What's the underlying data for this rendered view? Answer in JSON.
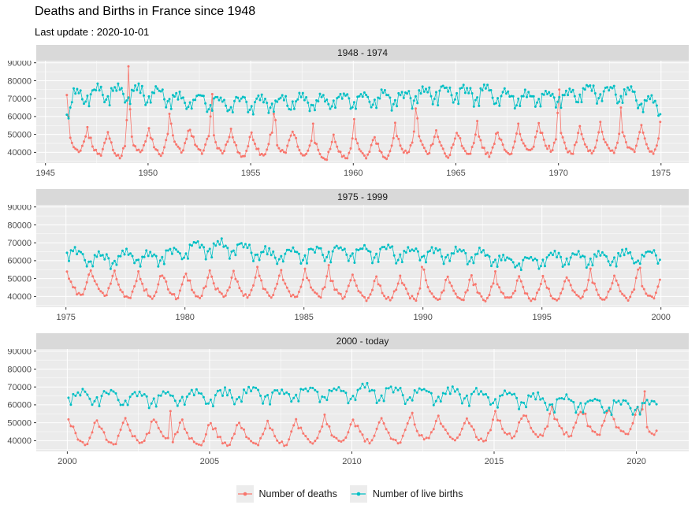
{
  "header": {
    "title": "Deaths and Births in France since 1948",
    "subtitle": "Last update : 2020-10-01"
  },
  "theme": {
    "background": "#FFFFFF",
    "panel_bg": "#EBEBEB",
    "strip_bg": "#D9D9D9",
    "strip_text": "#1A1A1A",
    "grid": "#FFFFFF",
    "axis_text": "#4D4D4D",
    "tick": "#333333",
    "legend_key_bg": "#ECECEC",
    "deaths_color": "#F8766D",
    "births_color": "#00BFC4"
  },
  "chart_data": {
    "type": "line",
    "title": "Deaths and Births in France since 1948",
    "subtitle": "Last update : 2020-10-01",
    "xlabel": "",
    "ylabel": "",
    "grid": "on",
    "legend_position": "bottom",
    "y_ticks": [
      40000,
      50000,
      60000,
      70000,
      80000,
      90000
    ],
    "y_minor": [
      35000,
      45000,
      55000,
      65000,
      75000,
      85000
    ],
    "y_domain": [
      34000,
      91200
    ],
    "panels": [
      {
        "strip": "1948 - 1974",
        "start": [
          1946,
          1
        ],
        "end": [
          1974,
          12
        ],
        "x_ticks": [
          1945,
          1950,
          1955,
          1960,
          1965,
          1970,
          1975
        ],
        "x_domain": [
          1944.55,
          1976.35
        ]
      },
      {
        "strip": "1975 - 1999",
        "start": [
          1975,
          1
        ],
        "end": [
          1999,
          12
        ],
        "x_ticks": [
          1975,
          1980,
          1985,
          1990,
          1995,
          2000
        ],
        "x_domain": [
          1973.75,
          2001.17
        ]
      },
      {
        "strip": "2000 - today",
        "start": [
          2000,
          1
        ],
        "end": [
          2020,
          9
        ],
        "x_ticks": [
          2000,
          2005,
          2010,
          2015,
          2020
        ],
        "x_domain": [
          1998.91,
          2021.84
        ]
      }
    ],
    "series": [
      {
        "name": "Number of deaths",
        "color": "#F8766D",
        "unit": "deaths per month",
        "noise": 0.028,
        "noise_seed": 1,
        "seasonal": [
          1.17,
          1.09,
          1.05,
          0.98,
          0.94,
          0.9,
          0.89,
          0.87,
          0.88,
          0.95,
          1.01,
          1.1
        ],
        "yearly_monthly_mean": {
          "1946": 45500,
          "1947": 44800,
          "1948": 42800,
          "1949": 46500,
          "1950": 44500,
          "1951": 47000,
          "1952": 45400,
          "1953": 46300,
          "1954": 43200,
          "1955": 43800,
          "1956": 45500,
          "1957": 44300,
          "1958": 41700,
          "1959": 42400,
          "1960": 43300,
          "1961": 41700,
          "1962": 45300,
          "1963": 46400,
          "1964": 43300,
          "1965": 45300,
          "1966": 44000,
          "1967": 45300,
          "1968": 46100,
          "1969": 47800,
          "1970": 45200,
          "1971": 46200,
          "1972": 45800,
          "1973": 46600,
          "1974": 46000,
          "1975": 46700,
          "1976": 46400,
          "1977": 44700,
          "1978": 45600,
          "1979": 45200,
          "1980": 45600,
          "1981": 46300,
          "1982": 45300,
          "1983": 46700,
          "1984": 45200,
          "1985": 46000,
          "1986": 45600,
          "1987": 43900,
          "1988": 43800,
          "1989": 44100,
          "1990": 43800,
          "1991": 43800,
          "1992": 43500,
          "1993": 44300,
          "1994": 43300,
          "1995": 44300,
          "1996": 44700,
          "1997": 44200,
          "1998": 44500,
          "1999": 44800,
          "2000": 44300,
          "2001": 44300,
          "2002": 44600,
          "2003": 46000,
          "2004": 42400,
          "2005": 44000,
          "2006": 43000,
          "2007": 43400,
          "2008": 44300,
          "2009": 44800,
          "2010": 45000,
          "2011": 44600,
          "2012": 46700,
          "2013": 46500,
          "2014": 45600,
          "2015": 48400,
          "2016": 48400,
          "2017": 49500,
          "2018": 49700,
          "2019": 49900,
          "2020": 50500
        },
        "spikes": {
          "1946-1": 72000,
          "1946-2": 60000,
          "1948-12": 58000,
          "1949-1": 88000,
          "1949-2": 64000,
          "1951-1": 61500,
          "1951-2": 56000,
          "1953-1": 60000,
          "1953-2": 72500,
          "1956-2": 61500,
          "1956-3": 58000,
          "1958-1": 56000,
          "1960-1": 58500,
          "1962-1": 56500,
          "1963-1": 64500,
          "1963-2": 59000,
          "1966-1": 57500,
          "1968-1": 56000,
          "1969-12": 62000,
          "1970-1": 75000,
          "1972-1": 57000,
          "1973-1": 65000,
          "1974-12": 57000,
          "1976-1": 54500,
          "1978-1": 54000,
          "1981-1": 54500,
          "1983-1": 56500,
          "1985-1": 55500,
          "1986-1": 57500,
          "1989-12": 56500,
          "1990-1": 55000,
          "1993-1": 54000,
          "1997-1": 55500,
          "1999-1": 55000,
          "1999-2": 56000,
          "2003-8": 56500,
          "2009-1": 54500,
          "2012-2": 55500,
          "2015-1": 56500,
          "2016-1": 54000,
          "2016-12": 55000,
          "2017-1": 59000,
          "2018-1": 56000,
          "2018-3": 55000,
          "2019-2": 54500,
          "2020-3": 57500,
          "2020-4": 67500
        }
      },
      {
        "name": "Number of live births",
        "color": "#00BFC4",
        "unit": "live births per month",
        "noise": 0.022,
        "noise_seed": 2,
        "seasonal": [
          0.99,
          0.93,
          1.03,
          1.03,
          1.06,
          1.03,
          1.06,
          1.03,
          1.04,
          1.0,
          0.93,
          0.96
        ],
        "yearly_monthly_mean": {
          "1946": 70300,
          "1947": 72500,
          "1948": 72600,
          "1949": 72700,
          "1950": 71800,
          "1951": 68800,
          "1952": 68500,
          "1953": 67000,
          "1954": 67500,
          "1955": 67100,
          "1956": 67200,
          "1957": 68000,
          "1958": 67700,
          "1959": 69100,
          "1960": 68300,
          "1961": 69800,
          "1962": 69300,
          "1963": 72300,
          "1964": 73200,
          "1965": 72100,
          "1966": 72000,
          "1967": 70100,
          "1968": 69600,
          "1969": 70200,
          "1970": 70800,
          "1971": 73400,
          "1972": 73100,
          "1973": 71400,
          "1974": 66800,
          "1975": 62100,
          "1976": 60000,
          "1977": 62100,
          "1978": 61400,
          "1979": 63100,
          "1980": 66700,
          "1981": 67100,
          "1982": 66400,
          "1983": 62400,
          "1984": 63300,
          "1985": 64000,
          "1986": 64800,
          "1987": 64000,
          "1988": 64300,
          "1989": 63800,
          "1990": 63500,
          "1991": 63300,
          "1992": 62000,
          "1993": 59300,
          "1994": 59300,
          "1995": 60800,
          "1996": 61200,
          "1997": 60600,
          "1998": 61500,
          "1999": 62100,
          "2000": 64600,
          "2001": 64200,
          "2002": 63500,
          "2003": 63400,
          "2004": 64000,
          "2005": 64500,
          "2006": 66400,
          "2007": 65500,
          "2008": 66300,
          "2009": 66100,
          "2010": 66800,
          "2011": 66100,
          "2012": 65800,
          "2013": 65200,
          "2014": 65100,
          "2015": 63300,
          "2016": 62000,
          "2017": 60800,
          "2018": 59900,
          "2019": 59500,
          "2020": 59000
        },
        "spikes": {
          "1946-1": 61000,
          "1946-2": 59000,
          "1946-3": 65000,
          "1946-4": 68000
        }
      }
    ]
  }
}
